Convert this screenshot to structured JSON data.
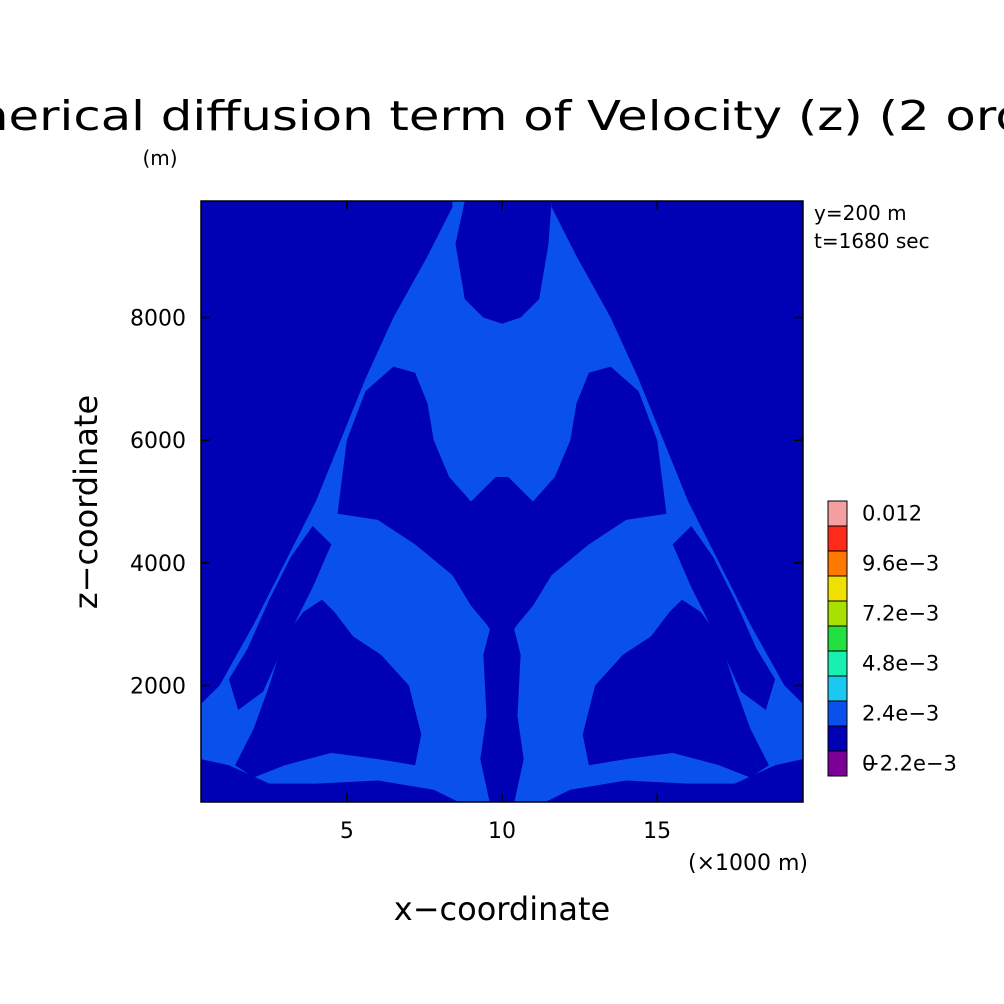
{
  "chart_data": {
    "type": "heatmap",
    "title": "nerical diffusion term of Velocity (z) (2 ord",
    "title_unit": "(m)",
    "xlabel": "x−coordinate",
    "ylabel": "z−coordinate",
    "x_unit": "(×1000 m)",
    "xlim": [
      0.3,
      19.7
    ],
    "ylim": [
      100,
      9900
    ],
    "x_ticks": [
      {
        "value": 5,
        "label": "5"
      },
      {
        "value": 10,
        "label": "10"
      },
      {
        "value": 15,
        "label": "15"
      }
    ],
    "y_ticks": [
      {
        "value": 2000,
        "label": "2000"
      },
      {
        "value": 4000,
        "label": "4000"
      },
      {
        "value": 6000,
        "label": "6000"
      },
      {
        "value": 8000,
        "label": "8000"
      }
    ],
    "annotations": [
      "y=200 m",
      "t=1680 sec"
    ],
    "colorbar": {
      "labels": [
        "0.012",
        "9.6e−3",
        "7.2e−3",
        "4.8e−3",
        "2.4e−3",
        "0",
        "−2.2e−3"
      ],
      "levels": [
        {
          "color": "#f4a0a0"
        },
        {
          "color": "#ff2a1a"
        },
        {
          "color": "#ff7800"
        },
        {
          "color": "#f0e000"
        },
        {
          "color": "#a8e000"
        },
        {
          "color": "#22e040"
        },
        {
          "color": "#18f0b0"
        },
        {
          "color": "#1ac8f0"
        },
        {
          "color": "#0a50ec"
        },
        {
          "color": "#0000b4"
        },
        {
          "color": "#7c0098"
        }
      ]
    },
    "colors": {
      "background_level": "#0a50ec",
      "negative_level": "#0000b4"
    },
    "regions": [
      {
        "name": "left-edge-dark",
        "level": "negative",
        "points": [
          [
            0.3,
            9900
          ],
          [
            8.4,
            9900
          ],
          [
            8.4,
            9800
          ],
          [
            7.6,
            9000
          ],
          [
            6.5,
            8000
          ],
          [
            5.6,
            7000
          ],
          [
            4.8,
            6000
          ],
          [
            4.0,
            5000
          ],
          [
            3.0,
            4000
          ],
          [
            2.0,
            3000
          ],
          [
            0.9,
            2000
          ],
          [
            0.3,
            1700
          ]
        ]
      },
      {
        "name": "right-edge-dark",
        "level": "negative",
        "points": [
          [
            19.7,
            9900
          ],
          [
            11.6,
            9900
          ],
          [
            11.6,
            9800
          ],
          [
            12.4,
            9000
          ],
          [
            13.5,
            8000
          ],
          [
            14.4,
            7000
          ],
          [
            15.2,
            6000
          ],
          [
            16.0,
            5000
          ],
          [
            17.0,
            4000
          ],
          [
            18.0,
            3000
          ],
          [
            19.1,
            2000
          ],
          [
            19.7,
            1700
          ]
        ]
      },
      {
        "name": "top-center-dark",
        "level": "negative",
        "points": [
          [
            8.8,
            9900
          ],
          [
            11.6,
            9900
          ],
          [
            11.5,
            9200
          ],
          [
            11.2,
            8300
          ],
          [
            10.6,
            8000
          ],
          [
            10.0,
            7900
          ],
          [
            9.4,
            8000
          ],
          [
            8.8,
            8300
          ],
          [
            8.5,
            9200
          ]
        ]
      },
      {
        "name": "center-bell-dark",
        "level": "negative",
        "points": [
          [
            4.7,
            4800
          ],
          [
            5.0,
            6000
          ],
          [
            5.6,
            6800
          ],
          [
            6.5,
            7200
          ],
          [
            7.2,
            7100
          ],
          [
            7.6,
            6600
          ],
          [
            7.8,
            6000
          ],
          [
            8.3,
            5400
          ],
          [
            9.0,
            5000
          ],
          [
            9.8,
            5400
          ],
          [
            10.2,
            5400
          ],
          [
            11.0,
            5000
          ],
          [
            11.7,
            5400
          ],
          [
            12.2,
            6000
          ],
          [
            12.4,
            6600
          ],
          [
            12.8,
            7100
          ],
          [
            13.5,
            7200
          ],
          [
            14.4,
            6800
          ],
          [
            15.0,
            6000
          ],
          [
            15.3,
            4800
          ],
          [
            14.0,
            4700
          ],
          [
            12.8,
            4300
          ],
          [
            11.6,
            3800
          ],
          [
            11.0,
            3300
          ],
          [
            10.5,
            3000
          ],
          [
            10.1,
            2700
          ],
          [
            9.9,
            2700
          ],
          [
            9.5,
            3000
          ],
          [
            9.0,
            3300
          ],
          [
            8.4,
            3800
          ],
          [
            7.2,
            4300
          ],
          [
            6.0,
            4700
          ]
        ]
      },
      {
        "name": "center-stem-dark",
        "level": "negative",
        "points": [
          [
            9.7,
            3100
          ],
          [
            10.3,
            3100
          ],
          [
            10.6,
            2500
          ],
          [
            10.5,
            1500
          ],
          [
            10.7,
            800
          ],
          [
            10.4,
            100
          ],
          [
            9.6,
            100
          ],
          [
            9.3,
            800
          ],
          [
            9.5,
            1500
          ],
          [
            9.4,
            2500
          ]
        ]
      },
      {
        "name": "left-wing-dark",
        "level": "negative",
        "points": [
          [
            2.0,
            1300
          ],
          [
            2.5,
            2000
          ],
          [
            3.0,
            2800
          ],
          [
            3.6,
            3200
          ],
          [
            4.2,
            3400
          ],
          [
            4.6,
            3200
          ],
          [
            5.2,
            2800
          ],
          [
            6.1,
            2500
          ],
          [
            7.0,
            2000
          ],
          [
            7.4,
            1200
          ],
          [
            7.2,
            700
          ],
          [
            6.0,
            800
          ],
          [
            4.5,
            900
          ],
          [
            3.0,
            700
          ],
          [
            2.0,
            500
          ],
          [
            1.4,
            700
          ]
        ]
      },
      {
        "name": "right-wing-dark",
        "level": "negative",
        "points": [
          [
            18.0,
            1300
          ],
          [
            17.5,
            2000
          ],
          [
            17.0,
            2800
          ],
          [
            16.4,
            3200
          ],
          [
            15.8,
            3400
          ],
          [
            15.4,
            3200
          ],
          [
            14.8,
            2800
          ],
          [
            13.9,
            2500
          ],
          [
            13.0,
            2000
          ],
          [
            12.6,
            1200
          ],
          [
            12.8,
            700
          ],
          [
            14.0,
            800
          ],
          [
            15.5,
            900
          ],
          [
            17.0,
            700
          ],
          [
            18.0,
            500
          ],
          [
            18.6,
            700
          ]
        ]
      },
      {
        "name": "left-mid-dark",
        "level": "negative",
        "points": [
          [
            1.2,
            2100
          ],
          [
            1.8,
            2600
          ],
          [
            2.5,
            3400
          ],
          [
            3.2,
            4100
          ],
          [
            3.9,
            4600
          ],
          [
            4.5,
            4300
          ],
          [
            3.9,
            3600
          ],
          [
            3.1,
            2800
          ],
          [
            2.3,
            1900
          ],
          [
            1.5,
            1600
          ]
        ]
      },
      {
        "name": "right-mid-dark",
        "level": "negative",
        "points": [
          [
            18.8,
            2100
          ],
          [
            18.2,
            2600
          ],
          [
            17.5,
            3400
          ],
          [
            16.8,
            4100
          ],
          [
            16.1,
            4600
          ],
          [
            15.5,
            4300
          ],
          [
            16.1,
            3600
          ],
          [
            16.9,
            2800
          ],
          [
            17.7,
            1900
          ],
          [
            18.5,
            1600
          ]
        ]
      },
      {
        "name": "bottom-left-dark",
        "level": "negative",
        "points": [
          [
            0.3,
            100
          ],
          [
            0.3,
            800
          ],
          [
            1.2,
            700
          ],
          [
            2.5,
            400
          ],
          [
            4.0,
            400
          ],
          [
            6.0,
            450
          ],
          [
            7.8,
            300
          ],
          [
            8.6,
            100
          ]
        ]
      },
      {
        "name": "bottom-right-dark",
        "level": "negative",
        "points": [
          [
            19.7,
            100
          ],
          [
            19.7,
            800
          ],
          [
            18.8,
            700
          ],
          [
            17.5,
            400
          ],
          [
            16.0,
            400
          ],
          [
            14.0,
            450
          ],
          [
            12.2,
            300
          ],
          [
            11.4,
            100
          ]
        ]
      }
    ]
  }
}
